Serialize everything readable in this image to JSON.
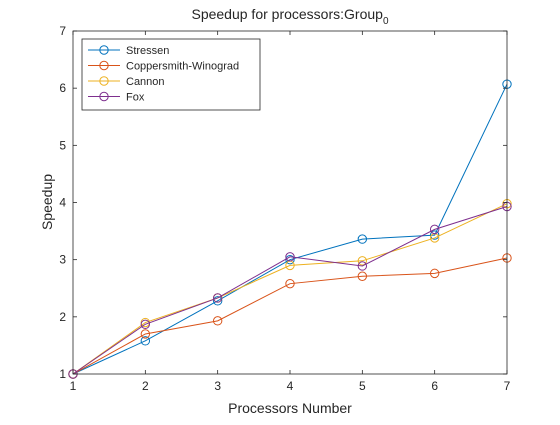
{
  "chart_data": {
    "type": "line",
    "title": "Speedup for processors:Group",
    "title_subscript": "0",
    "xlabel": "Processors Number",
    "ylabel": "Speedup",
    "xlim": [
      1,
      7
    ],
    "ylim": [
      1,
      7
    ],
    "xticks": [
      1,
      2,
      3,
      4,
      5,
      6,
      7
    ],
    "yticks": [
      1,
      2,
      3,
      4,
      5,
      6,
      7
    ],
    "grid": false,
    "legend_position": "top-left",
    "x": [
      1,
      2,
      3,
      4,
      5,
      6,
      7
    ],
    "series": [
      {
        "name": "Stressen",
        "color": "#0072BD",
        "values": [
          1.0,
          1.58,
          2.28,
          3.0,
          3.36,
          3.43,
          6.07
        ]
      },
      {
        "name": "Coppersmith-Winograd",
        "color": "#D95319",
        "values": [
          1.0,
          1.7,
          1.93,
          2.58,
          2.71,
          2.76,
          3.03
        ]
      },
      {
        "name": "Cannon",
        "color": "#EDB120",
        "values": [
          1.0,
          1.9,
          2.33,
          2.9,
          2.98,
          3.38,
          3.98
        ]
      },
      {
        "name": "Fox",
        "color": "#7E2F8E",
        "values": [
          1.0,
          1.87,
          2.33,
          3.05,
          2.89,
          3.53,
          3.93
        ]
      }
    ]
  }
}
